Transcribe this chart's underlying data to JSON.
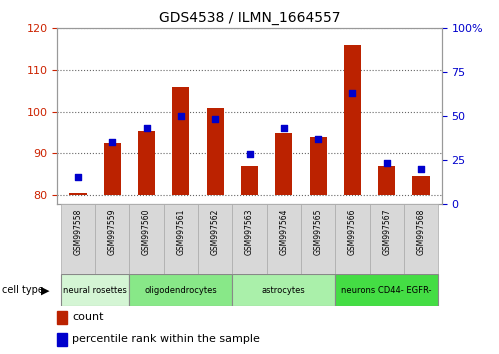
{
  "title": "GDS4538 / ILMN_1664557",
  "samples": [
    "GSM997558",
    "GSM997559",
    "GSM997560",
    "GSM997561",
    "GSM997562",
    "GSM997563",
    "GSM997564",
    "GSM997565",
    "GSM997566",
    "GSM997567",
    "GSM997568"
  ],
  "counts": [
    80.5,
    92.5,
    95.5,
    106.0,
    101.0,
    87.0,
    95.0,
    94.0,
    116.0,
    87.0,
    84.5
  ],
  "percentile_ranks": [
    15,
    35,
    43,
    50,
    48,
    28,
    43,
    37,
    63,
    23,
    20
  ],
  "ylim_left": [
    78,
    120
  ],
  "ylim_right": [
    0,
    100
  ],
  "yticks_left": [
    80,
    90,
    100,
    110,
    120
  ],
  "yticks_right": [
    0,
    25,
    50,
    75,
    100
  ],
  "bar_color": "#bb2200",
  "dot_color": "#0000cc",
  "bar_bottom": 80,
  "ct_spans": [
    [
      0,
      2,
      "neural rosettes",
      "#d4f5d4"
    ],
    [
      2,
      5,
      "oligodendrocytes",
      "#88e888"
    ],
    [
      5,
      8,
      "astrocytes",
      "#aaf0aa"
    ],
    [
      8,
      11,
      "neurons CD44- EGFR-",
      "#44dd44"
    ]
  ],
  "legend_count_label": "count",
  "legend_pct_label": "percentile rank within the sample",
  "tick_label_color_left": "#cc2200",
  "tick_label_color_right": "#0000cc",
  "grid_color": "#666666",
  "plot_bg_color": "#ffffff",
  "sample_box_color": "#d8d8d8",
  "sample_box_edge": "#aaaaaa"
}
